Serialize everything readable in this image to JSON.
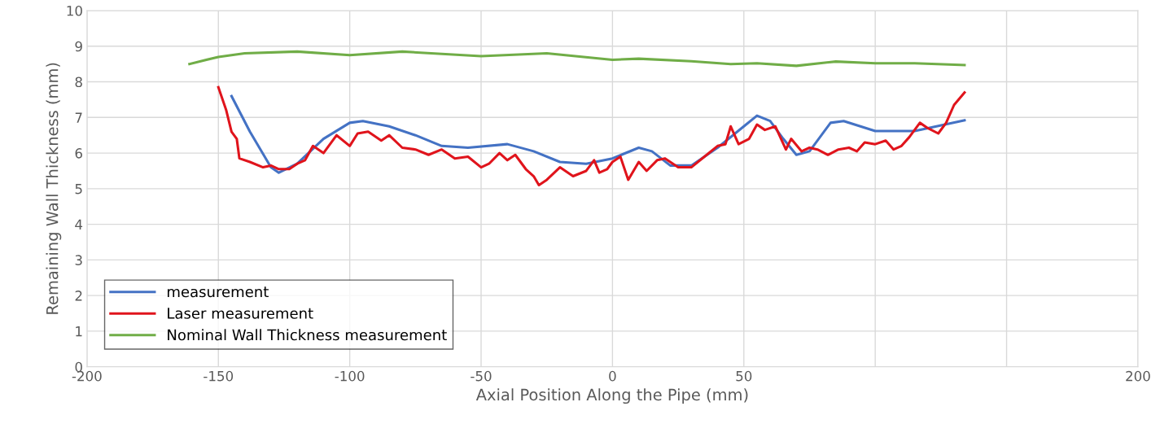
{
  "chart_data": {
    "type": "line",
    "xlabel": "Axial Position Along the Pipe (mm)",
    "ylabel": "Remaining Wall Thickness (mm)",
    "xlim": [
      -200,
      200
    ],
    "xticks": [
      -200,
      -150,
      -100,
      -50,
      0,
      50,
      {
        "value": 100,
        "label": null
      },
      {
        "value": 150,
        "label": null
      },
      200
    ],
    "ylim": [
      0,
      10
    ],
    "yticks": [
      0,
      1,
      2,
      3,
      4,
      5,
      6,
      7,
      8,
      9,
      10
    ],
    "grid": true,
    "legend": "bottom left",
    "marker": "none",
    "line_style": "solid",
    "series": [
      {
        "name": "measurement",
        "color": "#4472c4",
        "x": [
          -145,
          -138,
          -130,
          -127,
          -120,
          -110,
          -100,
          -95,
          -85,
          -75,
          -65,
          -55,
          -40,
          -30,
          -20,
          -10,
          0,
          10,
          15,
          22,
          30,
          40,
          50,
          55,
          60,
          65,
          70,
          75,
          83,
          88,
          100,
          115,
          134
        ],
        "values": [
          7.6,
          6.6,
          5.6,
          5.45,
          5.7,
          6.4,
          6.85,
          6.9,
          6.75,
          6.5,
          6.2,
          6.15,
          6.25,
          6.05,
          5.75,
          5.7,
          5.85,
          6.15,
          6.05,
          5.65,
          5.65,
          6.15,
          6.75,
          7.05,
          6.9,
          6.4,
          5.95,
          6.05,
          6.85,
          6.9,
          6.62,
          6.62,
          6.92
        ]
      },
      {
        "name": "Laser measurement",
        "color": "#e0141c",
        "x": [
          -150,
          -147,
          -145,
          -143,
          -142,
          -138,
          -133,
          -130,
          -127,
          -123,
          -120,
          -117,
          -114,
          -110,
          -105,
          -100,
          -97,
          -93,
          -88,
          -85,
          -80,
          -75,
          -70,
          -65,
          -60,
          -55,
          -50,
          -47,
          -43,
          -40,
          -37,
          -33,
          -30,
          -28,
          -25,
          -20,
          -15,
          -10,
          -7,
          -5,
          -2,
          0,
          3,
          6,
          10,
          13,
          17,
          20,
          25,
          30,
          35,
          40,
          43,
          45,
          48,
          52,
          55,
          58,
          62,
          66,
          68,
          72,
          75,
          78,
          82,
          86,
          90,
          93,
          96,
          100,
          104,
          107,
          110,
          113,
          117,
          120,
          124,
          127,
          130,
          134
        ],
        "values": [
          7.85,
          7.2,
          6.6,
          6.4,
          5.85,
          5.75,
          5.6,
          5.65,
          5.55,
          5.55,
          5.7,
          5.8,
          6.2,
          6.0,
          6.5,
          6.2,
          6.55,
          6.6,
          6.35,
          6.5,
          6.15,
          6.1,
          5.95,
          6.1,
          5.85,
          5.9,
          5.6,
          5.7,
          6.0,
          5.8,
          5.95,
          5.55,
          5.35,
          5.1,
          5.25,
          5.6,
          5.35,
          5.5,
          5.8,
          5.45,
          5.55,
          5.75,
          5.9,
          5.25,
          5.75,
          5.5,
          5.8,
          5.85,
          5.6,
          5.6,
          5.9,
          6.2,
          6.25,
          6.75,
          6.25,
          6.4,
          6.8,
          6.65,
          6.75,
          6.1,
          6.4,
          6.05,
          6.15,
          6.1,
          5.95,
          6.1,
          6.15,
          6.05,
          6.3,
          6.25,
          6.35,
          6.1,
          6.2,
          6.45,
          6.85,
          6.7,
          6.55,
          6.85,
          7.35,
          7.7
        ]
      },
      {
        "name": "Nominal Wall Thickness measurement",
        "color": "#70ad47",
        "x": [
          -161,
          -150,
          -140,
          -120,
          -100,
          -80,
          -50,
          -25,
          0,
          10,
          30,
          45,
          55,
          70,
          85,
          100,
          115,
          134
        ],
        "values": [
          8.5,
          8.7,
          8.8,
          8.85,
          8.75,
          8.85,
          8.72,
          8.8,
          8.62,
          8.65,
          8.58,
          8.5,
          8.52,
          8.45,
          8.57,
          8.52,
          8.52,
          8.47
        ]
      }
    ]
  }
}
